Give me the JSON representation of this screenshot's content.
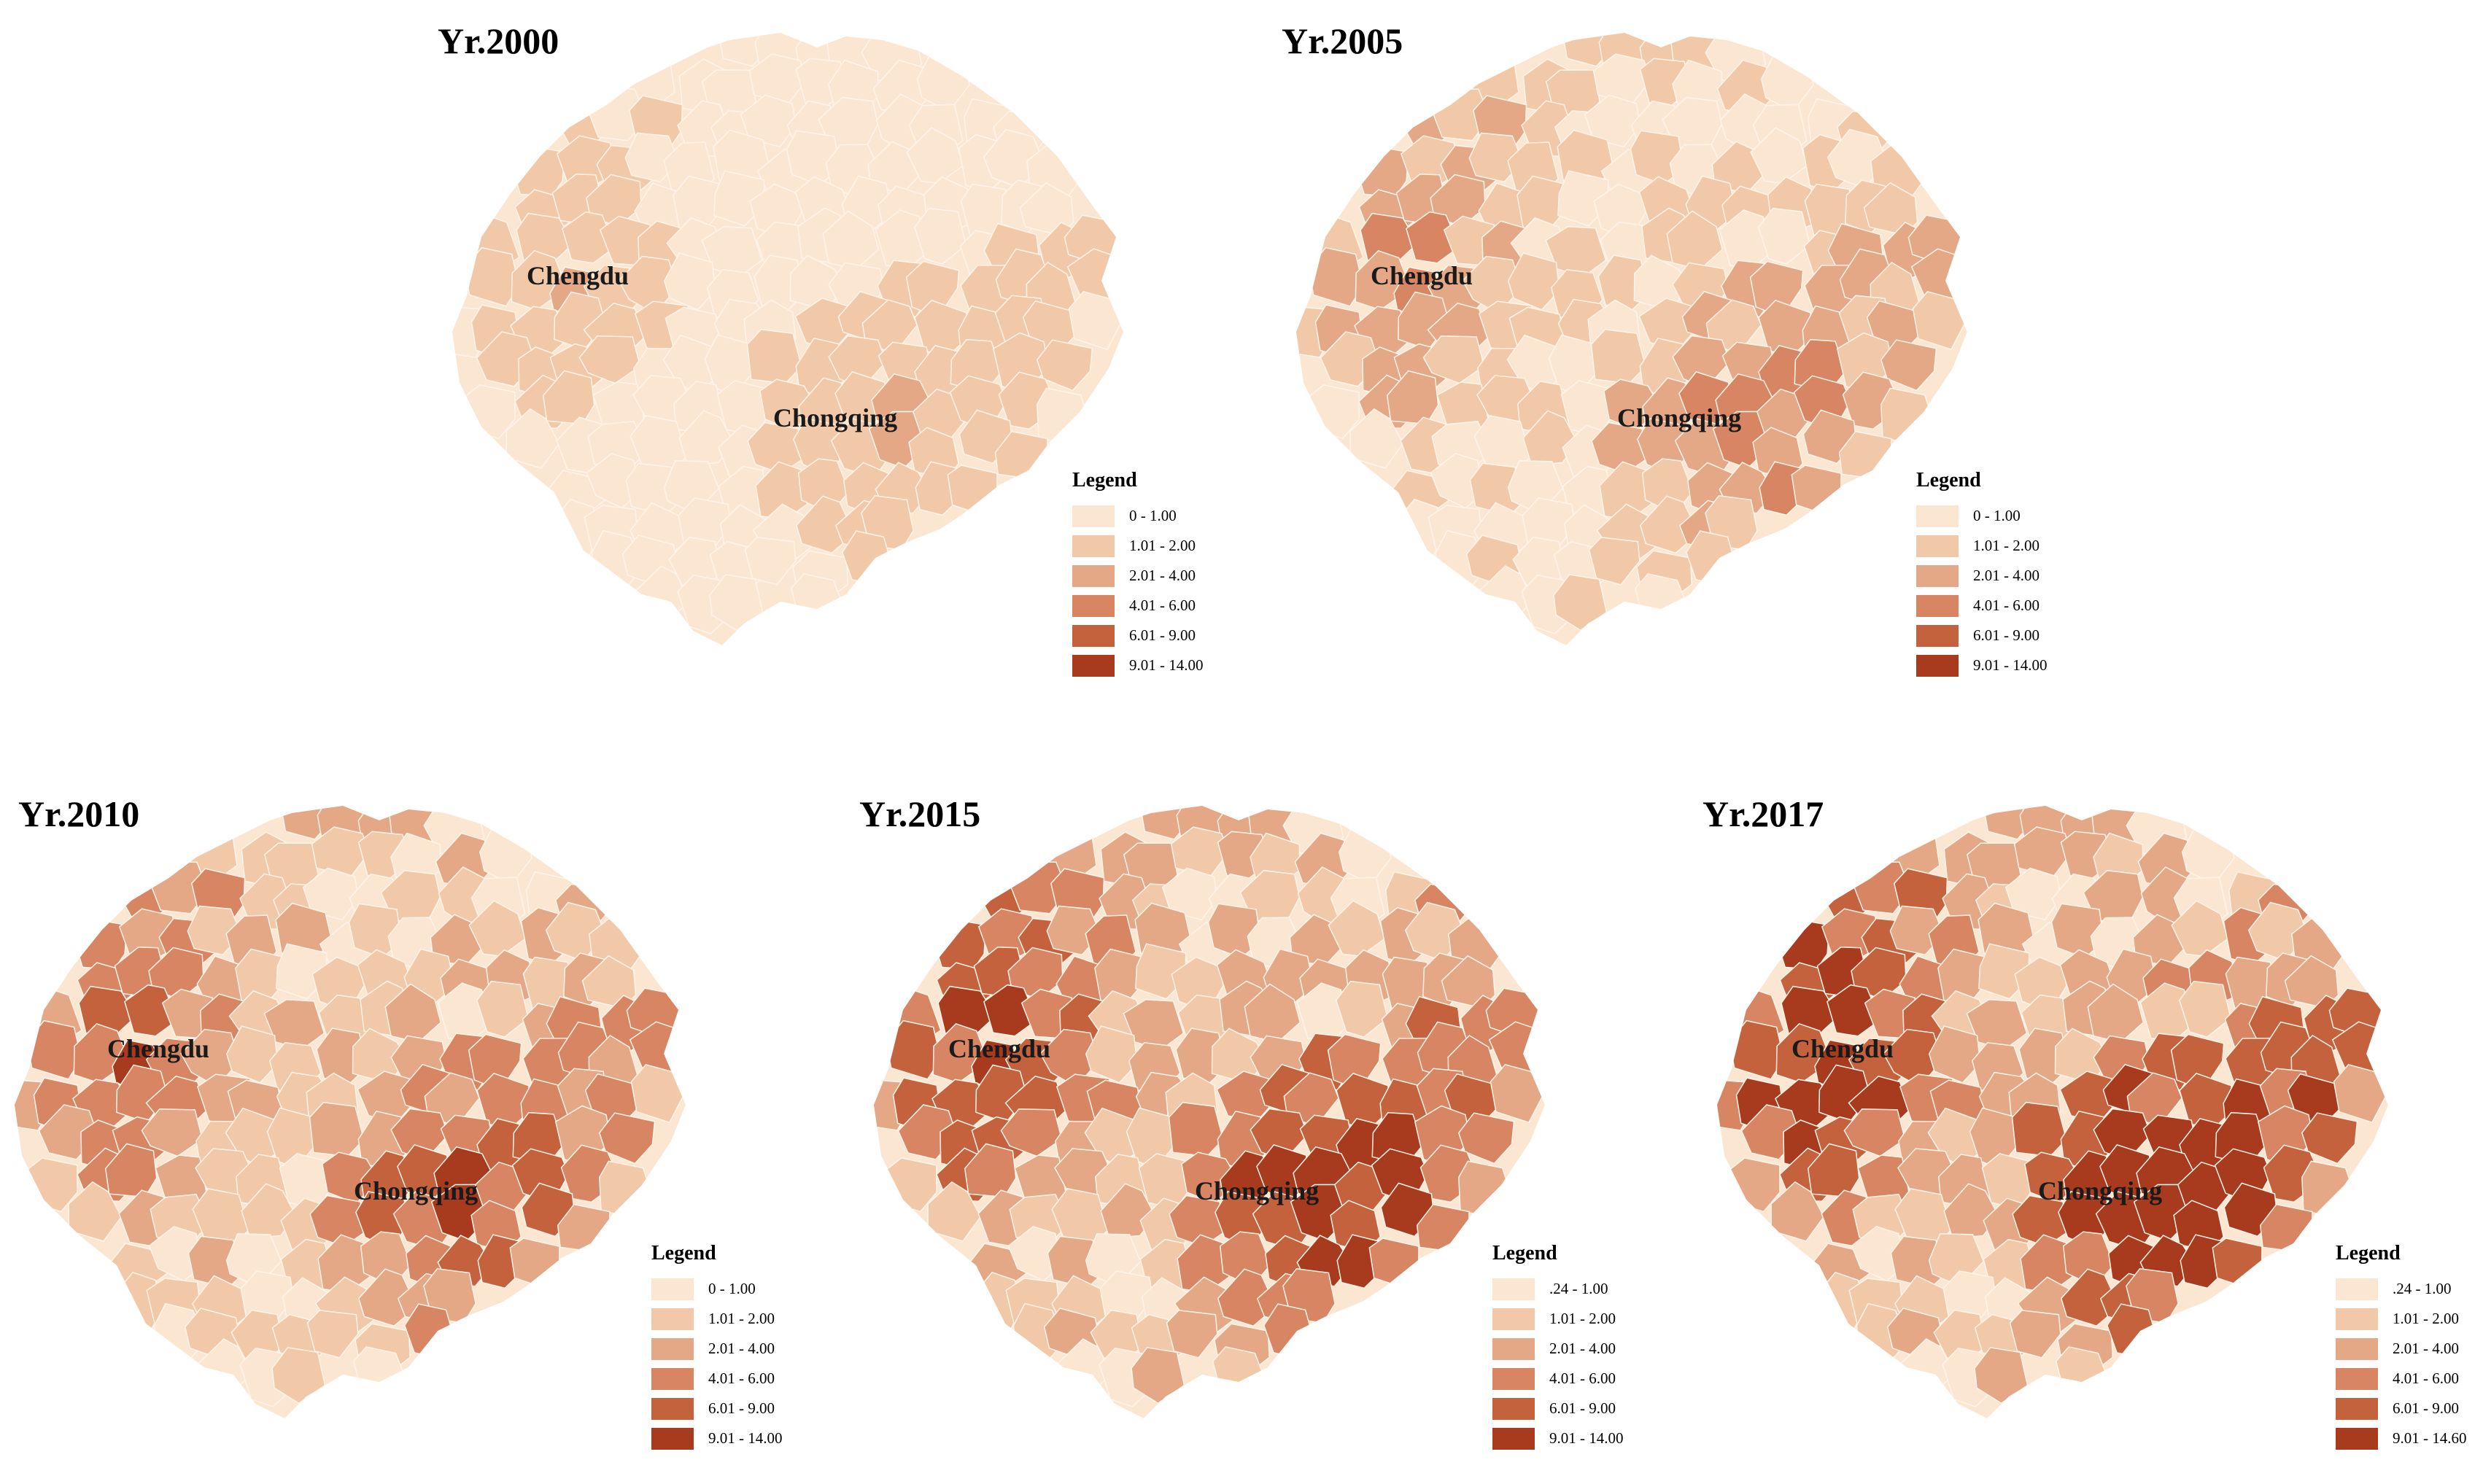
{
  "cities": {
    "a": "Chengdu",
    "b": "Chongqing"
  },
  "legend_title": "Legend",
  "palette": [
    "#fbe6d2",
    "#f1c9a8",
    "#e4a886",
    "#d78563",
    "#c4623e",
    "#a83b1e"
  ],
  "panels": [
    {
      "year": "Yr.2000",
      "legend": [
        "0 - 1.00",
        "1.01 - 2.00",
        "2.01 - 4.00",
        "4.01 - 6.00",
        "6.01 - 9.00",
        "9.01 - 14.00"
      ]
    },
    {
      "year": "Yr.2005",
      "legend": [
        "0 - 1.00",
        "1.01 - 2.00",
        "2.01 - 4.00",
        "4.01 - 6.00",
        "6.01 - 9.00",
        "9.01 - 14.00"
      ]
    },
    {
      "year": "Yr.2010",
      "legend": [
        "0 - 1.00",
        "1.01 - 2.00",
        "2.01 - 4.00",
        "4.01 - 6.00",
        "6.01 - 9.00",
        "9.01 - 14.00"
      ]
    },
    {
      "year": "Yr.2015",
      "legend": [
        ".24 - 1.00",
        "1.01 - 2.00",
        "2.01 - 4.00",
        "4.01 - 6.00",
        "6.01 - 9.00",
        "9.01 - 14.00"
      ]
    },
    {
      "year": "Yr.2017",
      "legend": [
        ".24 - 1.00",
        "1.01 - 2.00",
        "2.01 - 4.00",
        "4.01 - 6.00",
        "6.01 - 9.00",
        "9.01 - 14.60"
      ]
    }
  ]
}
